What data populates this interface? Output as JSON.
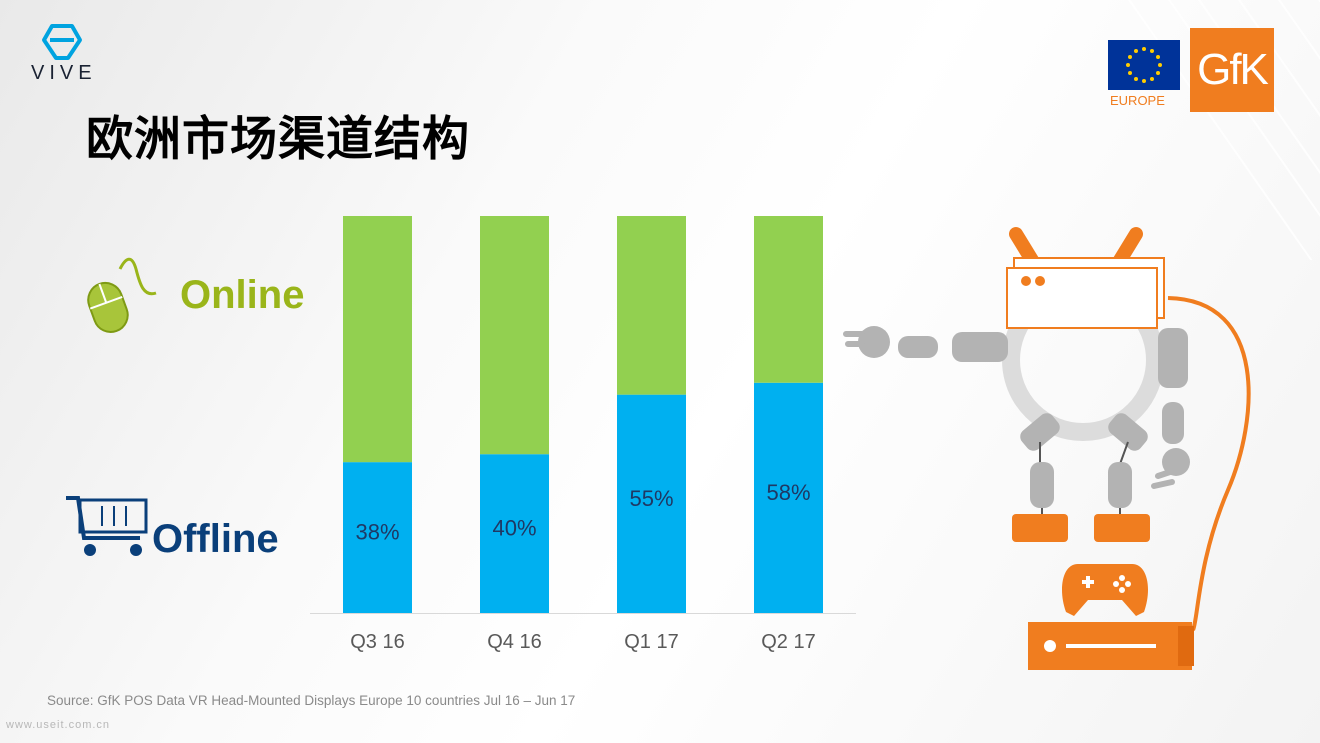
{
  "brand": {
    "vive_text": "VIVE",
    "eu_label": "EUROPE",
    "gfk_text": "GfK"
  },
  "title": "欧洲市场渠道结构",
  "legend": {
    "online": {
      "label": "Online",
      "color": "#92d050",
      "icon": "mouse-icon"
    },
    "offline": {
      "label": "Offline",
      "color": "#00b0f0",
      "icon": "shopping-cart-icon"
    }
  },
  "chart_data": {
    "type": "bar",
    "stacked": true,
    "categories": [
      "Q3 16",
      "Q4 16",
      "Q1 17",
      "Q2 17"
    ],
    "series": [
      {
        "name": "Offline",
        "values": [
          38,
          40,
          55,
          58
        ],
        "labels": [
          "38%",
          "40%",
          "55%",
          "58%"
        ],
        "color": "#00b0f0"
      },
      {
        "name": "Online",
        "values": [
          62,
          60,
          45,
          42
        ],
        "color": "#92d050"
      }
    ],
    "ylim": [
      0,
      100
    ],
    "grid": false
  },
  "source": "Source: GfK POS Data VR Head-Mounted Displays Europe 10 countries Jul 16 – Jun 17",
  "watermark": "www.useit.com.cn",
  "accent_color": "#f07d1f"
}
